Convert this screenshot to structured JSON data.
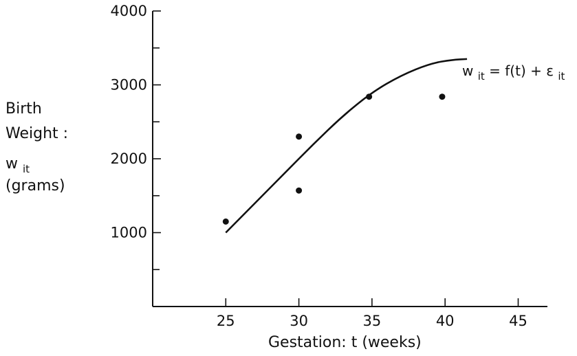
{
  "chart_data": {
    "type": "scatter",
    "title": "",
    "xlabel": "Gestation: t (weeks)",
    "ylabel_lines": [
      "Birth",
      "Weight :",
      "w",
      "it",
      "(grams)"
    ],
    "xlim": [
      20,
      47
    ],
    "ylim": [
      0,
      4000
    ],
    "x_ticks": [
      25,
      30,
      35,
      40,
      45
    ],
    "y_ticks": [
      1000,
      2000,
      3000,
      4000
    ],
    "grid": false,
    "points": [
      {
        "x": 25,
        "y": 1150
      },
      {
        "x": 30,
        "y": 2300
      },
      {
        "x": 30,
        "y": 1570
      },
      {
        "x": 34.8,
        "y": 2840
      },
      {
        "x": 39.8,
        "y": 2840
      }
    ],
    "curve": {
      "x": [
        25,
        27,
        29,
        31,
        33,
        35,
        37,
        39,
        40.5,
        41.5
      ],
      "y": [
        1000,
        1400,
        1800,
        2200,
        2580,
        2900,
        3130,
        3290,
        3340,
        3350
      ]
    },
    "annotation": {
      "main": "w",
      "sub1": "it",
      "middle": " = f(t) + ε",
      "sub2": "it"
    }
  }
}
